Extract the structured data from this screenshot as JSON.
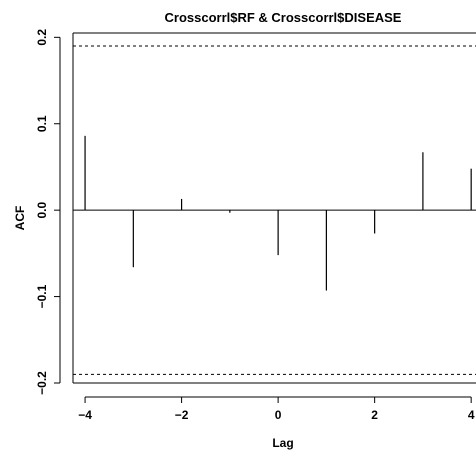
{
  "chart_data": {
    "type": "bar",
    "title": "Crosscorrl$RF & Crosscorrl$DISEASE",
    "xlabel": "Lag",
    "ylabel": "ACF",
    "x": [
      -4,
      -3,
      -2,
      -1,
      0,
      1,
      2,
      3,
      4
    ],
    "values": [
      0.086,
      -0.066,
      0.013,
      -0.003,
      -0.052,
      -0.093,
      -0.027,
      0.067,
      0.048
    ],
    "xlim": [
      -4.25,
      4.1
    ],
    "ylim": [
      -0.2,
      0.205
    ],
    "x_ticks": [
      "−4",
      "−2",
      "0",
      "2",
      "4"
    ],
    "x_tick_values": [
      -4,
      -2,
      0,
      2,
      4
    ],
    "y_ticks": [
      "−0.2",
      "−0.1",
      "0.0",
      "0.1",
      "0.2"
    ],
    "y_tick_values": [
      -0.2,
      -0.1,
      0.0,
      0.1,
      0.2
    ],
    "confidence_band": 0.19,
    "grid": false,
    "line_color": "#000000"
  }
}
